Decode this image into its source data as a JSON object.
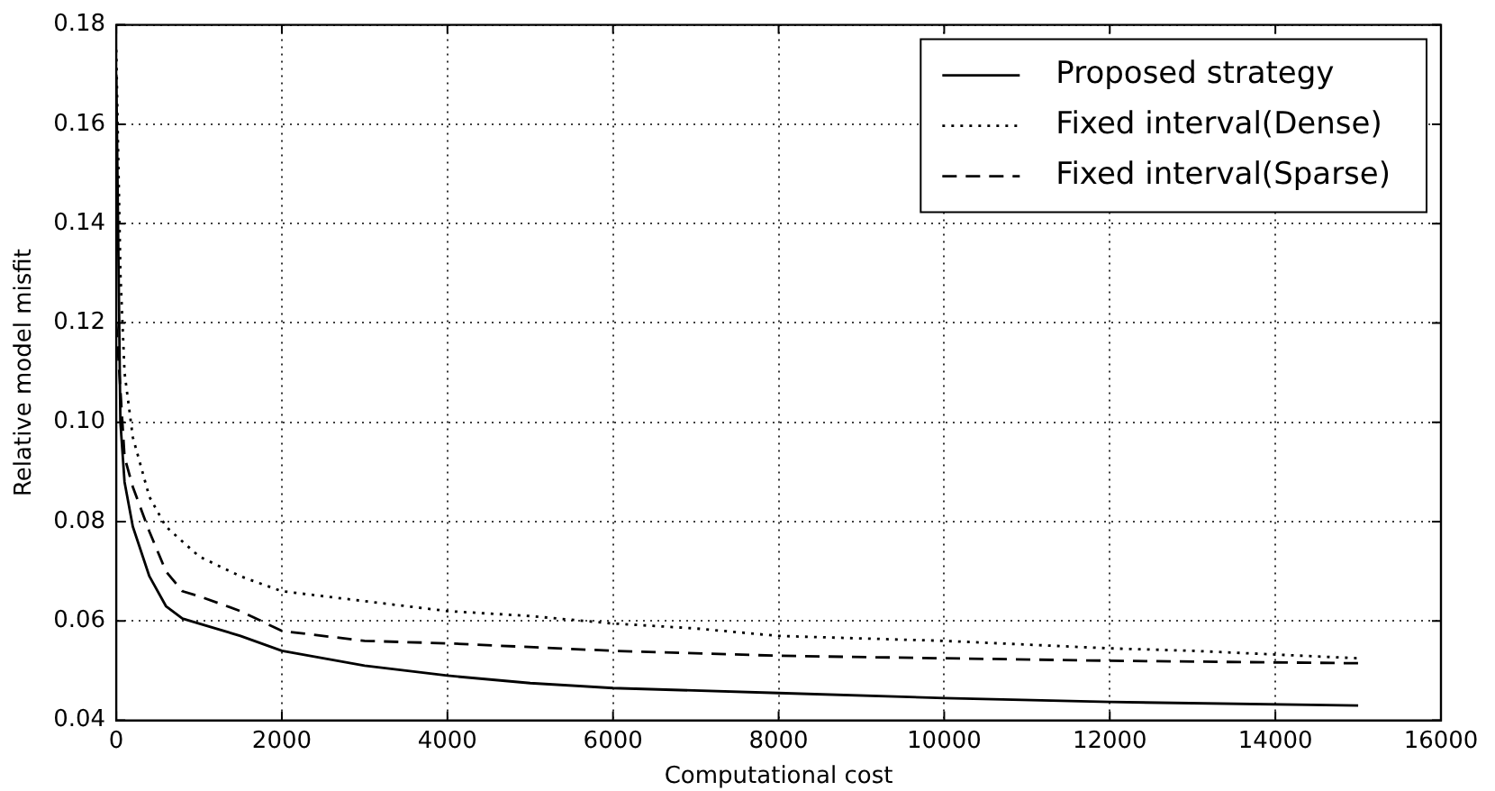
{
  "chart_data": {
    "type": "line",
    "xlabel": "Computational cost",
    "ylabel": "Relative model misfit",
    "xlim": [
      0,
      16000
    ],
    "xticks": [
      0,
      2000,
      4000,
      6000,
      8000,
      10000,
      12000,
      14000,
      16000
    ],
    "ylim": [
      0.04,
      0.18
    ],
    "yticks": [
      0.04,
      0.06,
      0.08,
      {
        "value": 0.1,
        "label": "0.10"
      },
      0.12,
      0.14,
      0.16,
      0.18
    ],
    "grid": true,
    "legend": "top right",
    "marker": "none",
    "series": [
      {
        "name": "Proposed strategy",
        "color": "#000000",
        "line_style": "solid",
        "x": [
          0,
          50,
          100,
          200,
          400,
          600,
          800,
          1000,
          1500,
          2000,
          3000,
          4000,
          5000,
          6000,
          8000,
          10000,
          12000,
          15000
        ],
        "values": [
          0.17,
          0.1,
          0.088,
          0.079,
          0.069,
          0.063,
          0.0605,
          0.0595,
          0.057,
          0.054,
          0.051,
          0.049,
          0.0475,
          0.0465,
          0.0455,
          0.0445,
          0.0437,
          0.043
        ]
      },
      {
        "name": "Fixed interval(Dense)",
        "color": "#000000",
        "line_style": "dotted",
        "x": [
          0,
          50,
          100,
          200,
          400,
          600,
          1000,
          1500,
          2000,
          3000,
          4000,
          5000,
          6000,
          7000,
          8000,
          10000,
          12000,
          13000,
          15000
        ],
        "values": [
          0.175,
          0.13,
          0.11,
          0.097,
          0.085,
          0.079,
          0.073,
          0.069,
          0.066,
          0.064,
          0.062,
          0.061,
          0.0595,
          0.0585,
          0.057,
          0.056,
          0.0545,
          0.054,
          0.0525
        ]
      },
      {
        "name": "Fixed interval(Sparse)",
        "color": "#000000",
        "line_style": "dashed",
        "x": [
          0,
          100,
          200,
          400,
          600,
          800,
          1000,
          1500,
          2000,
          3000,
          4000,
          6000,
          8000,
          10000,
          12000,
          15000
        ],
        "values": [
          0.12,
          0.093,
          0.087,
          0.078,
          0.07,
          0.066,
          0.065,
          0.062,
          0.058,
          0.056,
          0.0555,
          0.054,
          0.053,
          0.0525,
          0.052,
          0.0515
        ]
      }
    ]
  }
}
